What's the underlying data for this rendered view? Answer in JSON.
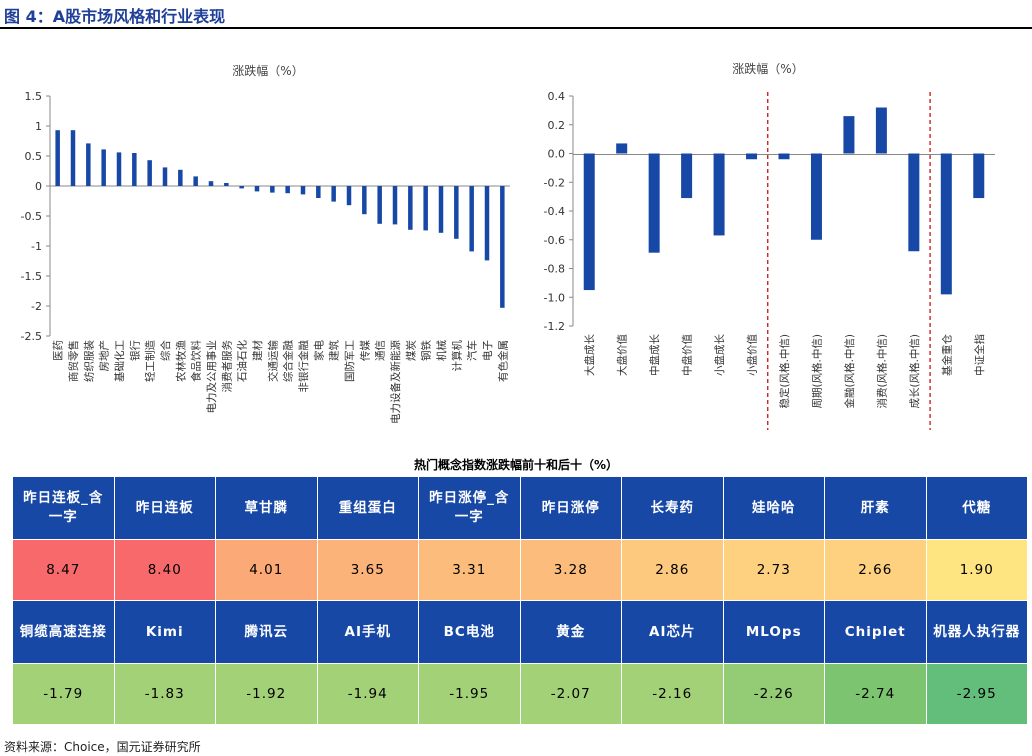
{
  "figure": {
    "title": "图 4：A股市场风格和行业表现",
    "source": "资料来源：Choice，国元证券研究所"
  },
  "chart_data": [
    {
      "type": "bar",
      "title": "涨跌幅（%）",
      "ylim": [
        -2.5,
        1.5
      ],
      "yticks": [
        "1.5",
        "1",
        "0.5",
        "0",
        "-0.5",
        "-1",
        "-1.5",
        "-2",
        "-2.5"
      ],
      "categories": [
        "医药",
        "商贸零售",
        "纺织服装",
        "房地产",
        "基础化工",
        "银行",
        "轻工制造",
        "综合",
        "农林牧渔",
        "食品饮料",
        "电力及公用事业",
        "消费者服务",
        "石油石化",
        "建材",
        "交通运输",
        "综合金融",
        "非银行金融",
        "家电",
        "建筑",
        "国防军工",
        "传媒",
        "通信",
        "电力设备及新能源",
        "煤炭",
        "钢铁",
        "机械",
        "计算机",
        "汽车",
        "电子",
        "有色金属"
      ],
      "values": [
        0.93,
        0.93,
        0.71,
        0.61,
        0.56,
        0.55,
        0.43,
        0.31,
        0.27,
        0.16,
        0.08,
        0.05,
        -0.04,
        -0.09,
        -0.11,
        -0.12,
        -0.14,
        -0.2,
        -0.26,
        -0.32,
        -0.47,
        -0.63,
        -0.64,
        -0.73,
        -0.74,
        -0.78,
        -0.88,
        -1.09,
        -1.24,
        -2.03
      ],
      "color": "#1748a6"
    },
    {
      "type": "bar",
      "title": "涨跌幅（%）",
      "ylim": [
        -1.2,
        0.4
      ],
      "yticks": [
        "0.4",
        "0.2",
        "0.0",
        "-0.2",
        "-0.4",
        "-0.6",
        "-0.8",
        "-1.0",
        "-1.2"
      ],
      "categories": [
        "大盘成长",
        "大盘价值",
        "中盘成长",
        "中盘价值",
        "小盘成长",
        "小盘价值",
        "稳定(风格.中信)",
        "周期(风格.中信)",
        "金融(风格.中信)",
        "消费(风格.中信)",
        "成长(风格.中信)",
        "基金重仓",
        "中证全指"
      ],
      "values": [
        -0.95,
        0.07,
        -0.69,
        -0.31,
        -0.57,
        -0.04,
        -0.04,
        -0.6,
        0.26,
        0.32,
        -0.68,
        -0.98,
        -0.31
      ],
      "separators_after_index": [
        5,
        10
      ],
      "color": "#1748a6"
    },
    {
      "type": "table",
      "title": "热门概念指数涨跌幅前十和后十（%）",
      "rows": [
        {
          "names": [
            "昨日连板_含一字",
            "昨日连板",
            "草甘膦",
            "重组蛋白",
            "昨日涨停_含一字",
            "昨日涨停",
            "长寿药",
            "娃哈哈",
            "肝素",
            "代糖"
          ],
          "values": [
            "8.47",
            "8.40",
            "4.01",
            "3.65",
            "3.31",
            "3.28",
            "2.86",
            "2.73",
            "2.66",
            "1.90"
          ],
          "colors": [
            "#f8696b",
            "#f8696b",
            "#fbaa77",
            "#fbb37a",
            "#fcbd7c",
            "#fcbd7c",
            "#fdc97e",
            "#fdd17f",
            "#fdd17f",
            "#fee582"
          ]
        },
        {
          "names": [
            "铜缆高速连接",
            "Kimi",
            "腾讯云",
            "AI手机",
            "BC电池",
            "黄金",
            "AI芯片",
            "MLOps",
            "Chiplet",
            "机器人执行器"
          ],
          "values": [
            "-1.79",
            "-1.83",
            "-1.92",
            "-1.94",
            "-1.95",
            "-2.07",
            "-2.16",
            "-2.26",
            "-2.74",
            "-2.95"
          ],
          "colors": [
            "#a3d177",
            "#a3d177",
            "#a3d177",
            "#a3d177",
            "#a3d177",
            "#a3d177",
            "#a3d177",
            "#93cc74",
            "#7dc470",
            "#63be7b"
          ]
        }
      ]
    }
  ]
}
